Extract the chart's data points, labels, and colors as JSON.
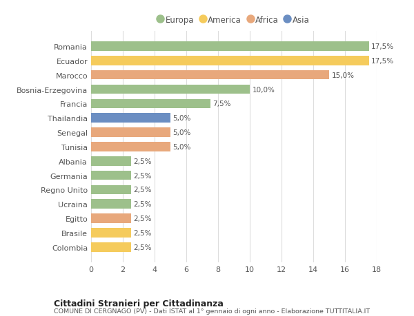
{
  "countries": [
    "Romania",
    "Ecuador",
    "Marocco",
    "Bosnia-Erzegovina",
    "Francia",
    "Thailandia",
    "Senegal",
    "Tunisia",
    "Albania",
    "Germania",
    "Regno Unito",
    "Ucraina",
    "Egitto",
    "Brasile",
    "Colombia"
  ],
  "values": [
    17.5,
    17.5,
    15.0,
    10.0,
    7.5,
    5.0,
    5.0,
    5.0,
    2.5,
    2.5,
    2.5,
    2.5,
    2.5,
    2.5,
    2.5
  ],
  "continents": [
    "Europa",
    "America",
    "Africa",
    "Europa",
    "Europa",
    "Asia",
    "Africa",
    "Africa",
    "Europa",
    "Europa",
    "Europa",
    "Europa",
    "Africa",
    "America",
    "America"
  ],
  "colors": {
    "Europa": "#9DC08B",
    "America": "#F5CB5C",
    "Africa": "#E8A87C",
    "Asia": "#6B8EC2"
  },
  "legend_order": [
    "Europa",
    "America",
    "Africa",
    "Asia"
  ],
  "title1": "Cittadini Stranieri per Cittadinanza",
  "title2": "COMUNE DI CERGNAGO (PV) - Dati ISTAT al 1° gennaio di ogni anno - Elaborazione TUTTITALIA.IT",
  "xlim": [
    0,
    18
  ],
  "xticks": [
    0,
    2,
    4,
    6,
    8,
    10,
    12,
    14,
    16,
    18
  ],
  "bg_color": "#FFFFFF",
  "grid_color": "#DDDDDD"
}
